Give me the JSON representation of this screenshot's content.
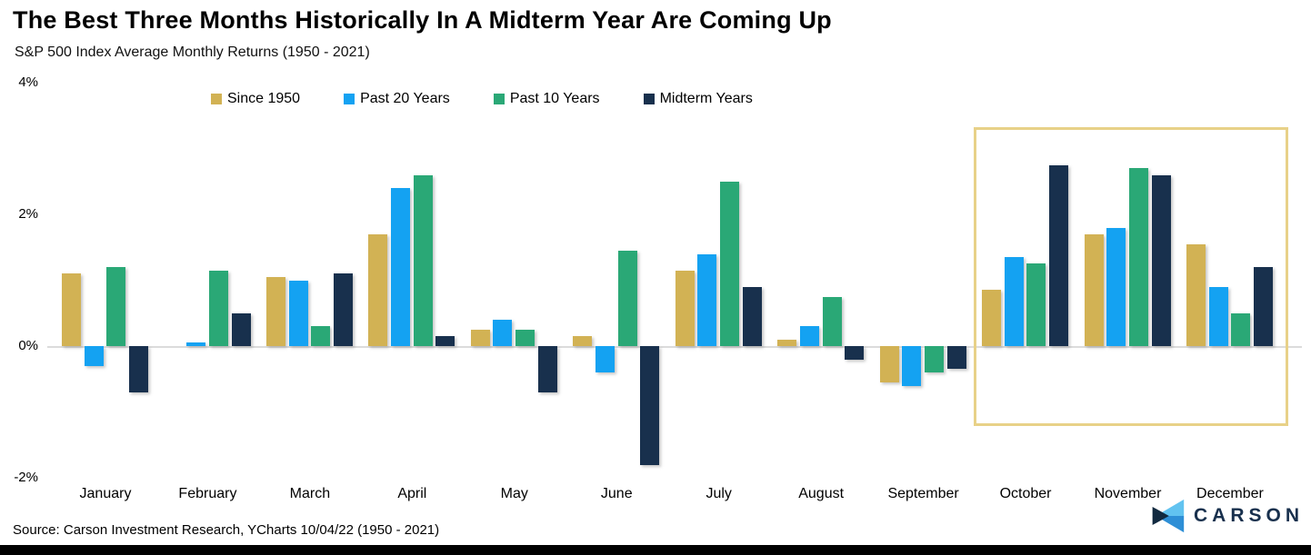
{
  "header": {
    "title": "The Best Three Months Historically In A Midterm Year Are Coming Up",
    "subtitle": "S&P 500 Index Average Monthly Returns (1950 - 2021)"
  },
  "footer": {
    "source": "Source: Carson Investment Research, YCharts 10/04/22 (1950 - 2021)",
    "logo_text": "CARSON"
  },
  "colors": {
    "since_1950": "#d2b254",
    "past_20_years": "#14a2f2",
    "past_10_years": "#2aa876",
    "midterm_years": "#18304d",
    "highlight_border": "#e8d188",
    "zero_line": "#dcdcdc",
    "footer_bar": "#000000",
    "logo_light_blue": "#62c3f0",
    "logo_medium_blue": "#2e8fd6",
    "logo_navy": "#122a40"
  },
  "chart_data": {
    "type": "bar",
    "title": "The Best Three Months Historically In A Midterm Year Are Coming Up",
    "subtitle": "S&P 500 Index Average Monthly Returns (1950 - 2021)",
    "categories": [
      "January",
      "February",
      "March",
      "April",
      "May",
      "June",
      "July",
      "August",
      "September",
      "October",
      "November",
      "December"
    ],
    "series": [
      {
        "name": "Since 1950",
        "color_key": "since_1950",
        "values": [
          1.1,
          0.0,
          1.05,
          1.7,
          0.25,
          0.15,
          1.15,
          0.1,
          -0.55,
          0.85,
          1.7,
          1.55
        ]
      },
      {
        "name": "Past 20 Years",
        "color_key": "past_20_years",
        "values": [
          -0.3,
          0.05,
          1.0,
          2.4,
          0.4,
          -0.4,
          1.4,
          0.3,
          -0.6,
          1.35,
          1.8,
          0.9
        ]
      },
      {
        "name": "Past 10 Years",
        "color_key": "past_10_years",
        "values": [
          1.2,
          1.15,
          0.3,
          2.6,
          0.25,
          1.45,
          2.5,
          0.75,
          -0.4,
          1.25,
          2.7,
          0.5
        ]
      },
      {
        "name": "Midterm Years",
        "color_key": "midterm_years",
        "values": [
          -0.7,
          0.5,
          1.1,
          0.15,
          -0.7,
          -1.8,
          0.9,
          -0.2,
          -0.35,
          2.75,
          2.6,
          1.2
        ]
      }
    ],
    "yticks": [
      {
        "label": "4%",
        "value": 4
      },
      {
        "label": "2%",
        "value": 2
      },
      {
        "label": "0%",
        "value": 0
      },
      {
        "label": "-2%",
        "value": -2
      }
    ],
    "ylim": [
      -2.2,
      4.1
    ],
    "xlabel": "",
    "ylabel": "",
    "grid": "zero-line-only",
    "legend_position": "top",
    "highlight": {
      "months": [
        "October",
        "November",
        "December"
      ]
    }
  }
}
